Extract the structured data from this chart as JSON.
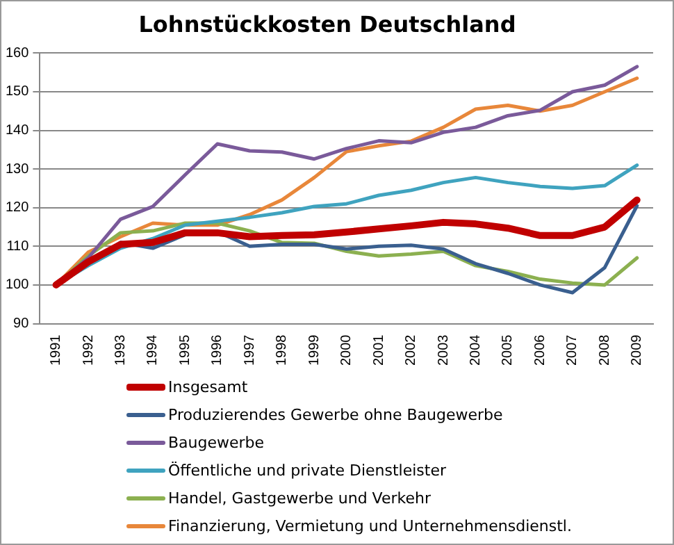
{
  "chart_data": {
    "type": "line",
    "title": "Lohnstückkosten Deutschland",
    "categories": [
      "1991",
      "1992",
      "1993",
      "1994",
      "1995",
      "1996",
      "1997",
      "1998",
      "1999",
      "2000",
      "2001",
      "2002",
      "2003",
      "2004",
      "2005",
      "2006",
      "2007",
      "2008",
      "2009"
    ],
    "series": [
      {
        "name": "Insgesamt",
        "color": "#c00000",
        "values": [
          100,
          106,
          110.5,
          111,
          113.5,
          113.5,
          112.5,
          112.8,
          113,
          113.7,
          114.5,
          115.3,
          116.2,
          115.8,
          114.7,
          112.8,
          112.8,
          115,
          122
        ]
      },
      {
        "name": "Produzierendes Gewerbe ohne Baugewerbe",
        "color": "#3a5f8f",
        "values": [
          100,
          105.5,
          111,
          109.5,
          113,
          113.8,
          110,
          110.5,
          110.5,
          109.3,
          110,
          110.3,
          109.3,
          105.5,
          103,
          100,
          98,
          104.5,
          120.5
        ]
      },
      {
        "name": "Baugewerbe",
        "color": "#7a5a9a",
        "values": [
          100,
          107,
          117,
          120.3,
          128.5,
          136.5,
          134.7,
          134.4,
          132.6,
          135.3,
          137.3,
          136.8,
          139.5,
          140.8,
          143.8,
          145.2,
          150,
          151.7,
          156.5
        ]
      },
      {
        "name": "Öffentliche und private Dienstleister",
        "color": "#3fa3bf",
        "values": [
          100,
          105,
          109.5,
          112,
          115.5,
          116.5,
          117.5,
          118.7,
          120.3,
          121,
          123.2,
          124.5,
          126.5,
          127.8,
          126.5,
          125.5,
          125,
          125.7,
          131
        ]
      },
      {
        "name": "Handel, Gastgewerbe und Verkehr",
        "color": "#8cb050",
        "values": [
          100,
          107.5,
          113.5,
          114,
          116,
          116,
          114,
          111,
          110.8,
          108.7,
          107.5,
          108,
          108.7,
          105,
          103.5,
          101.5,
          100.5,
          100,
          107
        ]
      },
      {
        "name": "Finanzierung, Vermietung und Unternehmensdienstl.",
        "color": "#e8873a",
        "values": [
          100,
          108.5,
          112.5,
          116,
          115.5,
          115.5,
          118.2,
          122,
          127.8,
          134.5,
          136,
          137.2,
          140.8,
          145.5,
          146.5,
          145,
          146.5,
          150,
          153.5
        ]
      }
    ],
    "ylim": [
      90,
      160
    ],
    "yticks": [
      90,
      100,
      110,
      120,
      130,
      140,
      150,
      160
    ],
    "grid": "y",
    "legend": "bottom",
    "marker": "none",
    "line_style": "solid"
  }
}
